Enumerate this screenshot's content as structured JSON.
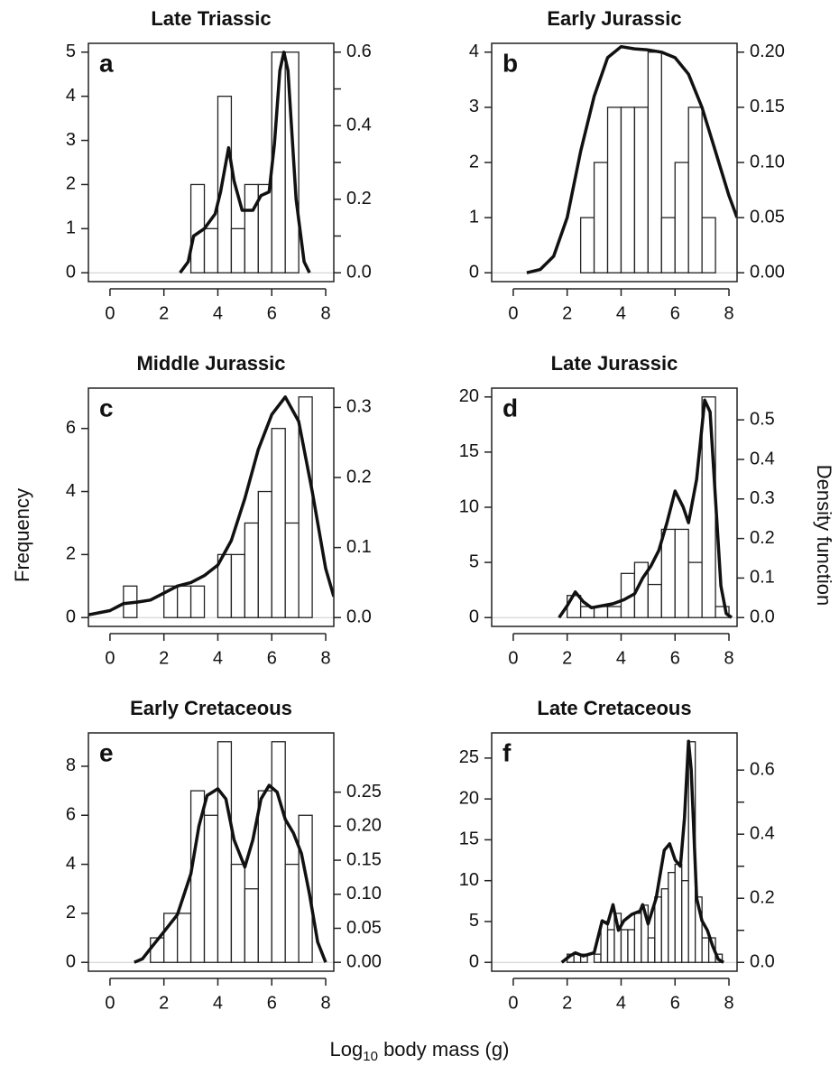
{
  "y_label": "Frequency",
  "y2_label": "Density function",
  "x_label": {
    "pre": "Log",
    "sub": "10",
    "post": " body mass (g)"
  },
  "chart_data": [
    {
      "type": "histogram",
      "title": "Late Triassic",
      "panel_label": "a",
      "bins": [
        3,
        3.5,
        4,
        4.5,
        5,
        5.5,
        6,
        6.5,
        7
      ],
      "counts": [
        2,
        1,
        4,
        1,
        2,
        2,
        5,
        5
      ],
      "density": {
        "axis": "y2",
        "x": [
          2.6,
          2.9,
          3.1,
          3.5,
          3.9,
          4.1,
          4.4,
          4.6,
          4.9,
          5.3,
          5.6,
          5.9,
          6.1,
          6.3,
          6.45,
          6.6,
          6.9,
          7.2,
          7.4
        ],
        "values": [
          0,
          0.03,
          0.1,
          0.12,
          0.16,
          0.22,
          0.34,
          0.25,
          0.17,
          0.17,
          0.21,
          0.22,
          0.35,
          0.55,
          0.6,
          0.55,
          0.2,
          0.03,
          0
        ]
      },
      "xlim": [
        -0.8,
        8.3
      ],
      "xticks": [
        0,
        2,
        4,
        6,
        8
      ],
      "ylim": [
        -0.2,
        5.2
      ],
      "yticks": [
        0,
        1,
        2,
        3,
        4,
        5
      ],
      "y2lim": [
        -0.024,
        0.624
      ],
      "y2ticks": [
        {
          "value": 0,
          "label": "0.0"
        },
        0.2,
        0.4,
        0.6
      ],
      "y2minor_ticks": [
        0.1,
        0.3,
        0.5
      ]
    },
    {
      "type": "histogram",
      "title": "Early Jurassic",
      "panel_label": "b",
      "bins": [
        2.5,
        3,
        3.5,
        4,
        4.5,
        5,
        5.5,
        6,
        6.5,
        7,
        7.5
      ],
      "counts": [
        1,
        2,
        3,
        3,
        3,
        4,
        1,
        2,
        3,
        1
      ],
      "density": {
        "axis": "y2",
        "x": [
          0.5,
          1,
          1.5,
          2,
          2.5,
          3,
          3.5,
          4,
          4.5,
          5,
          5.5,
          6,
          6.5,
          7,
          7.5,
          8,
          8.3
        ],
        "values": [
          0,
          0.003,
          0.015,
          0.05,
          0.11,
          0.16,
          0.195,
          0.205,
          0.203,
          0.202,
          0.2,
          0.195,
          0.18,
          0.15,
          0.11,
          0.07,
          0.05
        ]
      },
      "xlim": [
        -0.8,
        8.3
      ],
      "xticks": [
        0,
        2,
        4,
        6,
        8
      ],
      "ylim": [
        -0.16,
        4.16
      ],
      "yticks": [
        0,
        1,
        2,
        3,
        4
      ],
      "y2lim": [
        -0.008,
        0.208
      ],
      "y2ticks": [
        {
          "value": 0,
          "label": "0.00"
        },
        0.05,
        {
          "value": 0.1,
          "label": "0.10"
        },
        0.15,
        {
          "value": 0.2,
          "label": "0.20"
        }
      ]
    },
    {
      "type": "histogram",
      "title": "Middle Jurassic",
      "panel_label": "c",
      "bins": [
        0.5,
        1,
        1.5,
        2,
        2.5,
        3,
        3.5,
        4,
        4.5,
        5,
        5.5,
        6,
        6.5,
        7,
        7.5
      ],
      "counts": [
        1,
        0,
        0,
        1,
        1,
        1,
        0,
        2,
        2,
        3,
        4,
        6,
        3,
        7
      ],
      "density": {
        "axis": "y2",
        "x": [
          -0.8,
          0,
          0.5,
          1,
          1.5,
          2,
          2.5,
          3,
          3.5,
          4,
          4.5,
          5,
          5.5,
          6,
          6.5,
          7,
          7.5,
          8,
          8.3
        ],
        "values": [
          0.004,
          0.01,
          0.02,
          0.022,
          0.025,
          0.035,
          0.045,
          0.05,
          0.06,
          0.075,
          0.11,
          0.17,
          0.24,
          0.29,
          0.315,
          0.28,
          0.18,
          0.07,
          0.03
        ]
      },
      "xlim": [
        -0.8,
        8.3
      ],
      "xticks": [
        0,
        2,
        4,
        6,
        8
      ],
      "ylim": [
        -0.28,
        7.28
      ],
      "yticks": [
        0,
        2,
        4,
        6
      ],
      "y2lim": [
        -0.0126,
        0.3276
      ],
      "y2ticks": [
        {
          "value": 0,
          "label": "0.0"
        },
        0.1,
        0.2,
        0.3
      ]
    },
    {
      "type": "histogram",
      "title": "Late Jurassic",
      "panel_label": "d",
      "bins": [
        2,
        2.5,
        3,
        3.5,
        4,
        4.5,
        5,
        5.5,
        6,
        6.5,
        7,
        7.5,
        8
      ],
      "counts": [
        2,
        1,
        1,
        1,
        4,
        5,
        3,
        8,
        8,
        5,
        20,
        1
      ],
      "density": {
        "axis": "y2",
        "x": [
          1.7,
          2,
          2.3,
          2.6,
          2.9,
          3.3,
          3.7,
          4.1,
          4.5,
          4.8,
          5.1,
          5.4,
          5.7,
          6,
          6.3,
          6.5,
          6.8,
          7.1,
          7.3,
          7.5,
          7.7,
          7.9,
          8.1
        ],
        "values": [
          0,
          0.03,
          0.065,
          0.04,
          0.025,
          0.03,
          0.035,
          0.045,
          0.06,
          0.1,
          0.13,
          0.17,
          0.24,
          0.32,
          0.28,
          0.24,
          0.35,
          0.55,
          0.52,
          0.3,
          0.08,
          0.01,
          0
        ]
      },
      "xlim": [
        -0.8,
        8.3
      ],
      "xticks": [
        0,
        2,
        4,
        6,
        8
      ],
      "ylim": [
        -0.8,
        20.8
      ],
      "yticks": [
        0,
        5,
        10,
        15,
        20
      ],
      "y2lim": [
        -0.0223,
        0.5803
      ],
      "y2ticks": [
        {
          "value": 0,
          "label": "0.0"
        },
        0.1,
        0.2,
        0.3,
        0.4,
        0.5
      ]
    },
    {
      "type": "histogram",
      "title": "Early Cretaceous",
      "panel_label": "e",
      "bins": [
        1.5,
        2,
        2.5,
        3,
        3.5,
        4,
        4.5,
        5,
        5.5,
        6,
        6.5,
        7,
        7.5
      ],
      "counts": [
        1,
        2,
        2,
        7,
        6,
        9,
        4,
        3,
        7,
        9,
        4,
        6
      ],
      "density": {
        "axis": "y2",
        "x": [
          0.9,
          1.2,
          1.5,
          2,
          2.5,
          3,
          3.3,
          3.6,
          4,
          4.3,
          4.6,
          5,
          5.3,
          5.6,
          5.9,
          6.2,
          6.5,
          6.8,
          7.1,
          7.4,
          7.7,
          8
        ],
        "values": [
          0,
          0.005,
          0.02,
          0.045,
          0.07,
          0.13,
          0.2,
          0.245,
          0.255,
          0.24,
          0.18,
          0.14,
          0.18,
          0.24,
          0.26,
          0.25,
          0.21,
          0.19,
          0.16,
          0.1,
          0.03,
          0
        ]
      },
      "xlim": [
        -0.8,
        8.3
      ],
      "xticks": [
        0,
        2,
        4,
        6,
        8
      ],
      "ylim": [
        -0.36,
        9.36
      ],
      "yticks": [
        0,
        2,
        4,
        6,
        8
      ],
      "y2lim": [
        -0.013,
        0.337
      ],
      "y2ticks": [
        {
          "value": 0,
          "label": "0.00"
        },
        0.05,
        {
          "value": 0.1,
          "label": "0.10"
        },
        0.15,
        {
          "value": 0.2,
          "label": "0.20"
        },
        0.25
      ]
    },
    {
      "type": "histogram",
      "title": "Late Cretaceous",
      "panel_label": "f",
      "bins": [
        2,
        2.25,
        2.5,
        2.75,
        3,
        3.25,
        3.5,
        3.75,
        4,
        4.25,
        4.5,
        4.75,
        5,
        5.25,
        5.5,
        5.75,
        6,
        6.25,
        6.5,
        6.75,
        7,
        7.25,
        7.5,
        7.75
      ],
      "counts": [
        1,
        1,
        1,
        0,
        1,
        5,
        4,
        6,
        4,
        4,
        6,
        7,
        3,
        8,
        9,
        11,
        12,
        10,
        27,
        8,
        3,
        3,
        1
      ],
      "density": {
        "axis": "y2",
        "x": [
          1.8,
          2.1,
          2.3,
          2.6,
          3,
          3.3,
          3.5,
          3.7,
          3.9,
          4.1,
          4.4,
          4.7,
          4.8,
          5,
          5.3,
          5.6,
          5.8,
          6,
          6.2,
          6.35,
          6.5,
          6.6,
          6.8,
          7,
          7.2,
          7.4,
          7.6,
          7.8
        ],
        "values": [
          0,
          0.02,
          0.03,
          0.02,
          0.03,
          0.13,
          0.12,
          0.18,
          0.1,
          0.13,
          0.15,
          0.16,
          0.18,
          0.12,
          0.2,
          0.35,
          0.37,
          0.32,
          0.3,
          0.45,
          0.69,
          0.6,
          0.2,
          0.13,
          0.1,
          0.05,
          0.01,
          0
        ]
      },
      "xlim": [
        -0.8,
        8.3
      ],
      "xticks": [
        0,
        2,
        4,
        6,
        8
      ],
      "ylim": [
        -1.08,
        28.08
      ],
      "yticks": [
        0,
        5,
        10,
        15,
        20,
        25
      ],
      "y2lim": [
        -0.0275,
        0.716
      ],
      "y2ticks": [
        {
          "value": 0,
          "label": "0.0"
        },
        0.2,
        0.4,
        0.6
      ],
      "y2minor_ticks": [
        0.1,
        0.3,
        0.5
      ]
    }
  ]
}
